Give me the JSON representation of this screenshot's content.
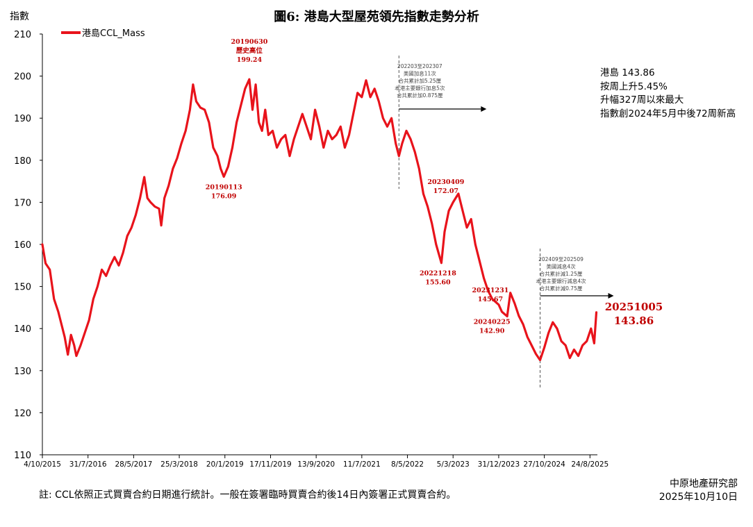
{
  "chart_data": {
    "type": "line",
    "title": "圖6: 港島大型屋苑領先指數走勢分析",
    "ylabel": "指數",
    "xlabel": "",
    "ylim": [
      110,
      210
    ],
    "yticks": [
      110,
      120,
      130,
      140,
      150,
      160,
      170,
      180,
      190,
      200,
      210
    ],
    "xticks": [
      "4/10/2015",
      "31/7/2016",
      "28/5/2017",
      "25/3/2018",
      "20/1/2019",
      "17/11/2019",
      "13/9/2020",
      "11/7/2021",
      "8/5/2022",
      "5/3/2023",
      "31/12/2023",
      "27/10/2024",
      "24/8/2025"
    ],
    "grid": false,
    "legend": "top-left",
    "color": "#e8131b",
    "series": [
      {
        "name": "港島CCL_Mass",
        "points": [
          [
            "2015-10-04",
            160.0
          ],
          [
            "2015-10-25",
            155.5
          ],
          [
            "2015-11-22",
            154.0
          ],
          [
            "2015-12-20",
            147.0
          ],
          [
            "2016-01-17",
            144.0
          ],
          [
            "2016-02-07",
            141.0
          ],
          [
            "2016-02-28",
            138.0
          ],
          [
            "2016-03-20",
            133.8
          ],
          [
            "2016-04-10",
            138.5
          ],
          [
            "2016-05-01",
            136.0
          ],
          [
            "2016-05-15",
            133.5
          ],
          [
            "2016-06-12",
            136.0
          ],
          [
            "2016-07-10",
            139.0
          ],
          [
            "2016-08-07",
            142.0
          ],
          [
            "2016-09-04",
            147.0
          ],
          [
            "2016-10-02",
            150.0
          ],
          [
            "2016-10-30",
            154.0
          ],
          [
            "2016-11-27",
            152.5
          ],
          [
            "2016-12-25",
            155.0
          ],
          [
            "2017-01-22",
            157.0
          ],
          [
            "2017-02-19",
            155.0
          ],
          [
            "2017-03-19",
            158.0
          ],
          [
            "2017-04-16",
            162.0
          ],
          [
            "2017-05-14",
            164.0
          ],
          [
            "2017-06-11",
            167.0
          ],
          [
            "2017-07-09",
            171.0
          ],
          [
            "2017-08-06",
            176.0
          ],
          [
            "2017-08-27",
            171.0
          ],
          [
            "2017-09-17",
            170.0
          ],
          [
            "2017-10-15",
            169.0
          ],
          [
            "2017-11-12",
            168.5
          ],
          [
            "2017-11-26",
            164.5
          ],
          [
            "2017-12-17",
            171.0
          ],
          [
            "2018-01-14",
            174.0
          ],
          [
            "2018-02-11",
            178.0
          ],
          [
            "2018-03-11",
            180.5
          ],
          [
            "2018-04-08",
            184.0
          ],
          [
            "2018-05-06",
            187.0
          ],
          [
            "2018-06-03",
            192.0
          ],
          [
            "2018-06-24",
            198.0
          ],
          [
            "2018-07-15",
            194.0
          ],
          [
            "2018-08-12",
            192.5
          ],
          [
            "2018-09-09",
            192.0
          ],
          [
            "2018-10-07",
            189.0
          ],
          [
            "2018-11-04",
            183.0
          ],
          [
            "2018-12-02",
            181.0
          ],
          [
            "2018-12-23",
            178.0
          ],
          [
            "2019-01-13",
            176.09
          ],
          [
            "2019-02-10",
            178.5
          ],
          [
            "2019-03-10",
            183.0
          ],
          [
            "2019-04-07",
            189.0
          ],
          [
            "2019-05-05",
            193.0
          ],
          [
            "2019-06-02",
            197.0
          ],
          [
            "2019-06-30",
            199.24
          ],
          [
            "2019-07-21",
            192.0
          ],
          [
            "2019-08-11",
            198.0
          ],
          [
            "2019-09-01",
            189.0
          ],
          [
            "2019-09-22",
            187.0
          ],
          [
            "2019-10-13",
            192.0
          ],
          [
            "2019-11-03",
            186.0
          ],
          [
            "2019-12-01",
            187.0
          ],
          [
            "2019-12-29",
            183.0
          ],
          [
            "2020-01-26",
            185.0
          ],
          [
            "2020-02-23",
            186.0
          ],
          [
            "2020-03-22",
            181.0
          ],
          [
            "2020-04-19",
            185.0
          ],
          [
            "2020-05-17",
            188.0
          ],
          [
            "2020-06-14",
            191.0
          ],
          [
            "2020-07-12",
            188.0
          ],
          [
            "2020-08-09",
            185.0
          ],
          [
            "2020-09-06",
            192.0
          ],
          [
            "2020-10-04",
            188.0
          ],
          [
            "2020-11-01",
            183.0
          ],
          [
            "2020-11-29",
            187.0
          ],
          [
            "2020-12-27",
            185.0
          ],
          [
            "2021-01-24",
            186.0
          ],
          [
            "2021-02-21",
            188.0
          ],
          [
            "2021-03-21",
            183.0
          ],
          [
            "2021-04-18",
            186.0
          ],
          [
            "2021-05-16",
            191.0
          ],
          [
            "2021-06-13",
            196.0
          ],
          [
            "2021-07-11",
            195.0
          ],
          [
            "2021-08-08",
            199.0
          ],
          [
            "2021-09-05",
            195.0
          ],
          [
            "2021-10-03",
            197.0
          ],
          [
            "2021-10-31",
            194.0
          ],
          [
            "2021-11-28",
            190.0
          ],
          [
            "2021-12-26",
            188.0
          ],
          [
            "2022-01-23",
            190.0
          ],
          [
            "2022-02-20",
            184.0
          ],
          [
            "2022-03-13",
            181.0
          ],
          [
            "2022-04-03",
            184.0
          ],
          [
            "2022-05-01",
            187.0
          ],
          [
            "2022-05-29",
            185.0
          ],
          [
            "2022-06-26",
            182.0
          ],
          [
            "2022-07-24",
            178.0
          ],
          [
            "2022-08-21",
            172.0
          ],
          [
            "2022-09-18",
            169.0
          ],
          [
            "2022-10-16",
            165.0
          ],
          [
            "2022-11-13",
            160.0
          ],
          [
            "2022-12-18",
            155.6
          ],
          [
            "2023-01-08",
            163.0
          ],
          [
            "2023-02-05",
            168.0
          ],
          [
            "2023-03-05",
            170.0
          ],
          [
            "2023-04-09",
            172.07
          ],
          [
            "2023-05-07",
            168.0
          ],
          [
            "2023-06-04",
            164.0
          ],
          [
            "2023-07-02",
            166.0
          ],
          [
            "2023-07-30",
            160.0
          ],
          [
            "2023-08-27",
            156.0
          ],
          [
            "2023-09-24",
            152.0
          ],
          [
            "2023-10-22",
            149.0
          ],
          [
            "2023-11-19",
            147.0
          ],
          [
            "2023-12-31",
            145.67
          ],
          [
            "2024-01-21",
            144.0
          ],
          [
            "2024-02-25",
            142.9
          ],
          [
            "2024-03-17",
            148.5
          ],
          [
            "2024-04-14",
            146.0
          ],
          [
            "2024-05-12",
            143.0
          ],
          [
            "2024-06-09",
            141.0
          ],
          [
            "2024-07-07",
            138.0
          ],
          [
            "2024-08-04",
            136.0
          ],
          [
            "2024-09-01",
            134.0
          ],
          [
            "2024-09-29",
            132.5
          ],
          [
            "2024-10-27",
            135.5
          ],
          [
            "2024-11-24",
            139.0
          ],
          [
            "2024-12-22",
            141.5
          ],
          [
            "2025-01-19",
            140.0
          ],
          [
            "2025-02-16",
            137.0
          ],
          [
            "2025-03-16",
            136.0
          ],
          [
            "2025-04-13",
            133.0
          ],
          [
            "2025-05-11",
            135.0
          ],
          [
            "2025-06-08",
            133.5
          ],
          [
            "2025-07-06",
            136.0
          ],
          [
            "2025-08-03",
            137.0
          ],
          [
            "2025-08-31",
            140.0
          ],
          [
            "2025-09-21",
            136.5
          ],
          [
            "2025-10-05",
            143.86
          ]
        ]
      }
    ],
    "annotations": [
      {
        "id": "peak-2019",
        "date": "2019-06-30",
        "lines": [
          "20190630",
          "歷史高位",
          "199.24"
        ],
        "position": "above"
      },
      {
        "id": "low-2019",
        "date": "2019-01-13",
        "lines": [
          "20190113",
          "176.09"
        ],
        "position": "below"
      },
      {
        "id": "pt-2023",
        "date": "2023-04-09",
        "lines": [
          "20230409",
          "172.07"
        ],
        "position": "above"
      },
      {
        "id": "low-2022",
        "date": "2022-12-18",
        "lines": [
          "20221218",
          "155.60"
        ],
        "position": "below"
      },
      {
        "id": "pt-2023b",
        "date": "2023-12-31",
        "lines": [
          "20231231",
          "145.67"
        ],
        "position": "above"
      },
      {
        "id": "pt-2024",
        "date": "2024-02-25",
        "lines": [
          "20240225",
          "142.90"
        ],
        "position": "below"
      },
      {
        "id": "latest",
        "date": "2025-10-05",
        "lines": [
          "20251005",
          "143.86"
        ],
        "position": "right"
      }
    ],
    "rate_notes": [
      {
        "id": "hike",
        "date": "2022-03-13",
        "lines": [
          "202203至202307",
          "美國加息11次",
          "合共累計加5.25厘",
          "本港主要銀行加息5次",
          "合共累計加0.875厘"
        ]
      },
      {
        "id": "cut",
        "date": "2024-09-29",
        "lines": [
          "202409至202509",
          "美國減息4次",
          "合共累計減1.25厘",
          "本港主要銀行減息4次",
          "合共累計減0.75厘"
        ]
      }
    ]
  },
  "side_text": [
    "港島 143.86",
    "按周上升5.45%",
    "升幅327周以來最大",
    "指數創2024年5月中後72周新高"
  ],
  "footnote": "註: CCL依照正式買賣合約日期進行統計。一般在簽署臨時買賣合約後14日內簽署正式買賣合約。",
  "source": [
    "中原地產研究部",
    "2025年10月10日"
  ]
}
